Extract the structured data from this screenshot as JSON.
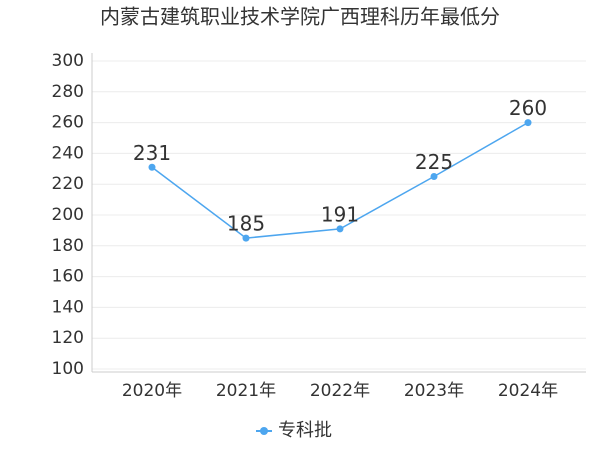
{
  "chart_data": {
    "type": "line",
    "title": "内蒙古建筑职业技术学院广西理科历年最低分",
    "categories": [
      "2020年",
      "2021年",
      "2022年",
      "2023年",
      "2024年"
    ],
    "series": [
      {
        "name": "专科批",
        "color": "#4da6ef",
        "values": [
          231,
          185,
          191,
          225,
          260
        ]
      }
    ],
    "ylim": [
      100,
      300
    ],
    "yticks": [
      100,
      120,
      140,
      160,
      180,
      200,
      220,
      240,
      260,
      280,
      300
    ],
    "grid": true,
    "legend": "bottom"
  }
}
